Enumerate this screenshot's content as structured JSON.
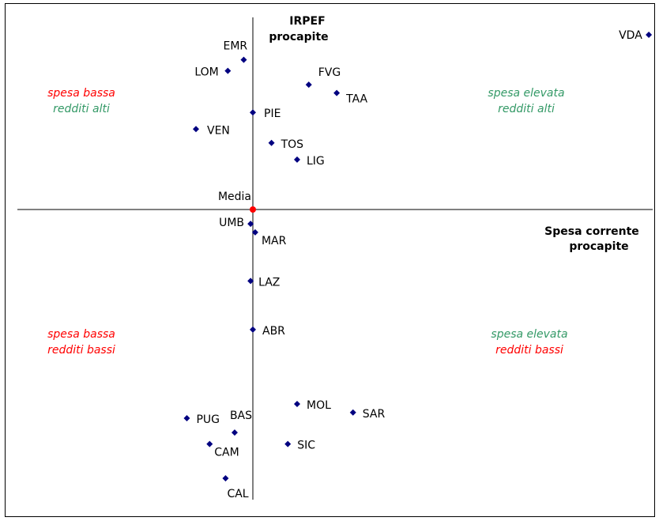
{
  "chart_data": {
    "type": "scatter",
    "y_axis_title": [
      "IRPEF",
      "procapite"
    ],
    "x_axis_title": [
      "Spesa corrente",
      "procapite"
    ],
    "grid": false,
    "colors": {
      "point": "#000080",
      "mean": "#ff0000",
      "red": "#ff0000",
      "green": "#339966",
      "axis": "#000000"
    },
    "quadrant_labels": [
      {
        "position": "top-left",
        "lines": [
          {
            "text": "spesa bassa",
            "color": "red"
          },
          {
            "text": "redditi alti",
            "color": "green"
          }
        ]
      },
      {
        "position": "top-right",
        "lines": [
          {
            "text": "spesa elevata",
            "color": "green"
          },
          {
            "text": "redditi alti",
            "color": "green"
          }
        ]
      },
      {
        "position": "bottom-left",
        "lines": [
          {
            "text": "spesa bassa",
            "color": "red"
          },
          {
            "text": "redditi bassi",
            "color": "red"
          }
        ]
      },
      {
        "position": "bottom-right",
        "lines": [
          {
            "text": "spesa elevata",
            "color": "green"
          },
          {
            "text": "redditi bassi",
            "color": "red"
          }
        ]
      }
    ],
    "mean_point": {
      "label": "Media",
      "x": 0,
      "y": 0
    },
    "xlim": [
      -100,
      172
    ],
    "ylim": [
      -114,
      70
    ],
    "points": [
      {
        "label": "VDA",
        "x": 170,
        "y": 63
      },
      {
        "label": "EMR",
        "x": -4,
        "y": 54
      },
      {
        "label": "LOM",
        "x": -11,
        "y": 50
      },
      {
        "label": "FVG",
        "x": 24,
        "y": 45
      },
      {
        "label": "TAA",
        "x": 36,
        "y": 42
      },
      {
        "label": "PIE",
        "x": 0,
        "y": 35
      },
      {
        "label": "VEN",
        "x": -25,
        "y": 29
      },
      {
        "label": "TOS",
        "x": 8,
        "y": 24
      },
      {
        "label": "LIG",
        "x": 19,
        "y": 18
      },
      {
        "label": "UMB",
        "x": -1,
        "y": -5
      },
      {
        "label": "MAR",
        "x": 1,
        "y": -8
      },
      {
        "label": "LAZ",
        "x": -1,
        "y": -25
      },
      {
        "label": "ABR",
        "x": 0,
        "y": -42
      },
      {
        "label": "MOL",
        "x": 19,
        "y": -68
      },
      {
        "label": "SAR",
        "x": 43,
        "y": -71
      },
      {
        "label": "PUG",
        "x": -29,
        "y": -73
      },
      {
        "label": "BAS",
        "x": -8,
        "y": -78
      },
      {
        "label": "CAM",
        "x": -19,
        "y": -82
      },
      {
        "label": "SIC",
        "x": 15,
        "y": -82
      },
      {
        "label": "CAL",
        "x": -12,
        "y": -94
      }
    ]
  }
}
